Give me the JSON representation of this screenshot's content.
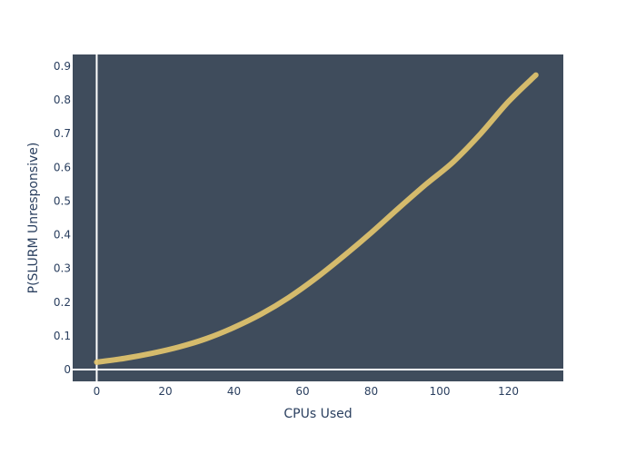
{
  "chart_data": {
    "type": "line",
    "title": "",
    "xlabel": "CPUs Used",
    "ylabel": "P(SLURM Unresponsive)",
    "xlim": [
      -7,
      136
    ],
    "ylim": [
      -0.035,
      0.935
    ],
    "xticks": [
      0,
      20,
      40,
      60,
      80,
      100,
      120
    ],
    "yticks": [
      0,
      0.1,
      0.2,
      0.3,
      0.4,
      0.5,
      0.6,
      0.7,
      0.8,
      0.9
    ],
    "grid": false,
    "zeroline": true,
    "legend": "none",
    "colors": {
      "plot_background": "#3f4c5c",
      "line": "#e2c46e",
      "zeroline": "#ffffff",
      "text": "#2a3f5f"
    },
    "series": [
      {
        "x": [
          0,
          8,
          16,
          24,
          32,
          40,
          48,
          56,
          64,
          72,
          80,
          88,
          96,
          104,
          112,
          120,
          128
        ],
        "y": [
          0.022,
          0.033,
          0.048,
          0.067,
          0.092,
          0.125,
          0.165,
          0.214,
          0.272,
          0.337,
          0.406,
          0.479,
          0.55,
          0.617,
          0.701,
          0.795,
          0.874
        ]
      }
    ]
  }
}
